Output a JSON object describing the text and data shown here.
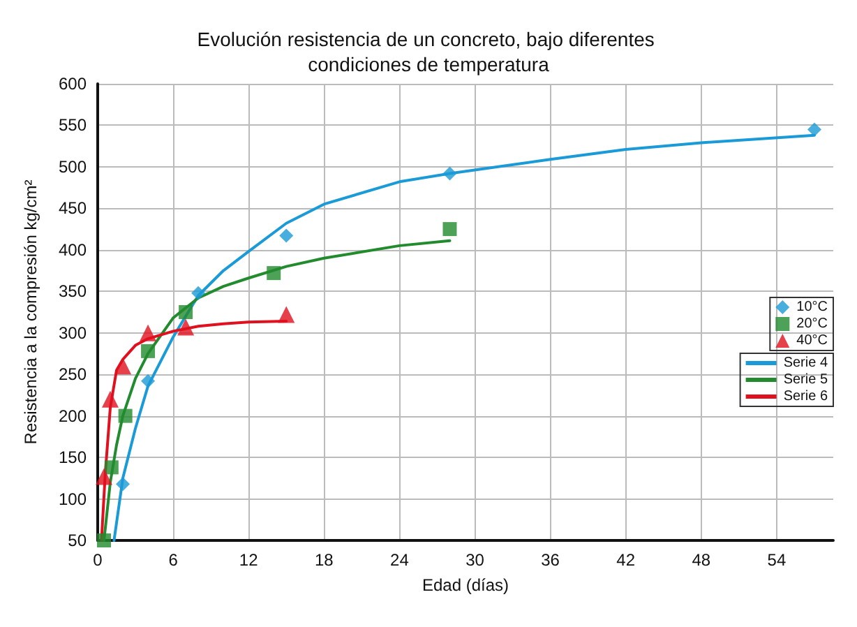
{
  "chart_data": {
    "type": "scatter",
    "title": "Evolución resistencia de un concreto, bajo diferentes condiciones de temperatura",
    "xlabel": "Edad (días)",
    "ylabel": "Resistencia a la compresión kg/cm²",
    "xlim": [
      0,
      58.5
    ],
    "xticks": [
      0,
      6,
      12,
      18,
      24,
      30,
      36,
      42,
      48,
      54
    ],
    "ylim": [
      50,
      600
    ],
    "yticks": [
      50,
      100,
      150,
      200,
      250,
      300,
      350,
      400,
      450,
      500,
      550,
      600
    ],
    "grid": true,
    "legend": "right",
    "series": [
      {
        "name": "10°C",
        "type": "scatter",
        "marker": "diamond",
        "color": "#1a9ad6",
        "x": [
          2,
          4,
          8,
          15,
          28,
          57
        ],
        "values": [
          118,
          242,
          348,
          417,
          492,
          545
        ]
      },
      {
        "name": "20°C",
        "type": "scatter",
        "marker": "square",
        "color": "#228b2e",
        "x": [
          0.5,
          1.1,
          2.2,
          4,
          7,
          14,
          28
        ],
        "values": [
          50,
          138,
          200,
          278,
          325,
          372,
          425
        ]
      },
      {
        "name": "40°C",
        "type": "scatter",
        "marker": "triangle",
        "color": "#e0101e",
        "x": [
          0.5,
          1,
          2,
          4,
          7,
          15
        ],
        "values": [
          127,
          220,
          260,
          300,
          307,
          322
        ]
      },
      {
        "name": "Serie 4",
        "type": "line",
        "marker": "none",
        "color": "#1a9ad6",
        "x": [
          1.3,
          2,
          3,
          4,
          6,
          8,
          10,
          12,
          15,
          18,
          24,
          28,
          36,
          42,
          48,
          57
        ],
        "values": [
          50,
          125,
          185,
          236,
          295,
          345,
          375,
          398,
          432,
          455,
          482,
          492,
          509,
          521,
          529,
          538
        ]
      },
      {
        "name": "Serie 5",
        "type": "line",
        "marker": "none",
        "color": "#228b2e",
        "x": [
          0.5,
          1,
          1.5,
          2,
          3,
          4,
          6,
          7,
          8,
          10,
          12,
          15,
          18,
          24,
          28
        ],
        "values": [
          50,
          120,
          165,
          200,
          245,
          275,
          318,
          330,
          342,
          356,
          366,
          380,
          390,
          405,
          411
        ]
      },
      {
        "name": "Serie 6",
        "type": "line",
        "marker": "none",
        "color": "#e0101e",
        "x": [
          0.3,
          0.6,
          1,
          1.5,
          2,
          3,
          4,
          6,
          8,
          10,
          12,
          15
        ],
        "values": [
          50,
          130,
          210,
          255,
          268,
          285,
          293,
          302,
          308,
          311,
          313,
          314
        ]
      }
    ]
  }
}
